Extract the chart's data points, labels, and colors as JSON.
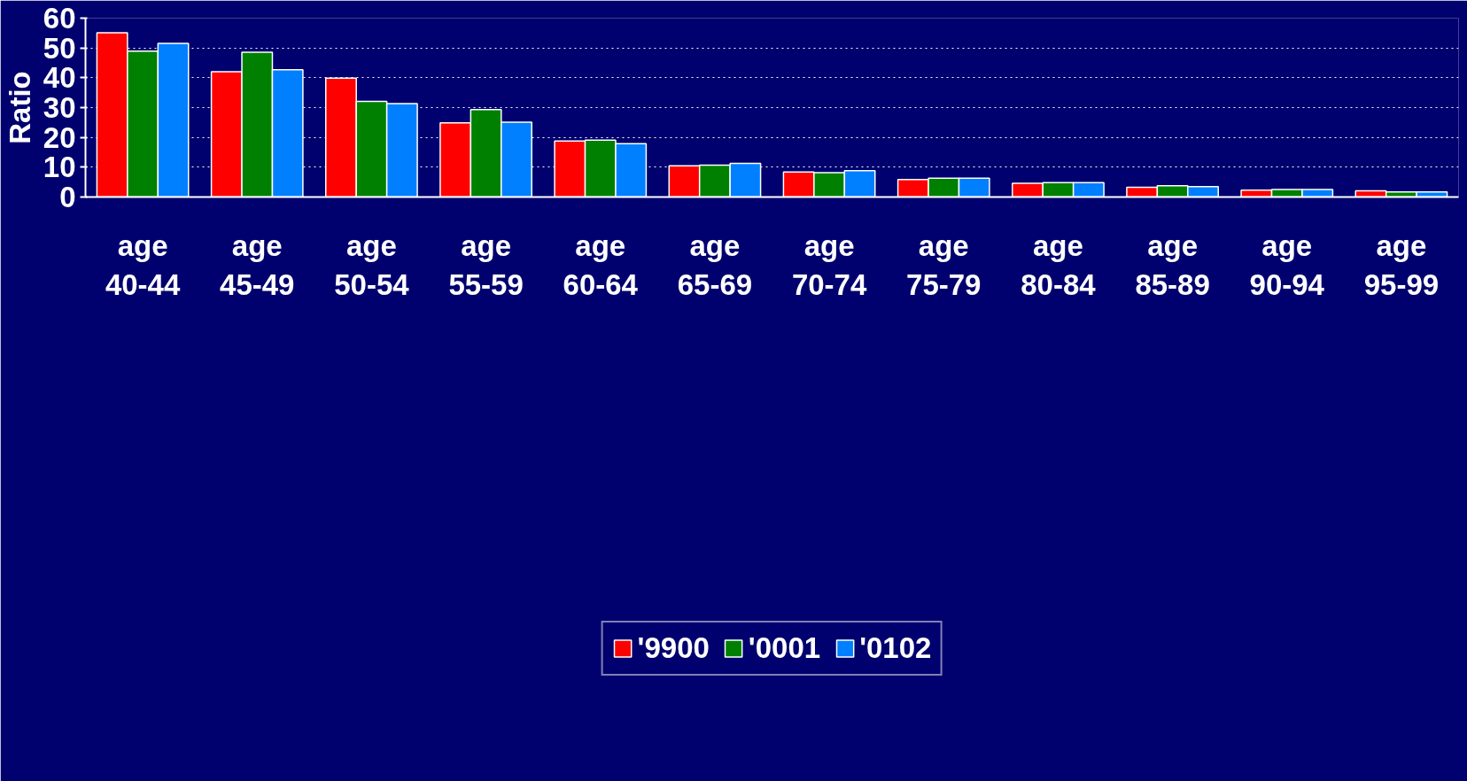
{
  "chart_data": {
    "type": "bar",
    "ylabel": "Ratio",
    "categories": [
      "age\n40-44",
      "age\n45-49",
      "age\n50-54",
      "age\n55-59",
      "age\n60-64",
      "age\n65-69",
      "age\n70-74",
      "age\n75-79",
      "age\n80-84",
      "age\n85-89",
      "age\n90-94",
      "age\n95-99"
    ],
    "series": [
      {
        "name": "'9900",
        "color": "#ff0000",
        "values": [
          55.1,
          42.0,
          39.9,
          24.9,
          18.8,
          10.5,
          8.4,
          5.9,
          4.6,
          3.3,
          2.3,
          2.1
        ]
      },
      {
        "name": "'0001",
        "color": "#008000",
        "values": [
          48.9,
          48.6,
          32.1,
          29.3,
          19.1,
          10.7,
          8.2,
          6.3,
          4.8,
          3.8,
          2.5,
          1.7
        ]
      },
      {
        "name": "'0102",
        "color": "#0080ff",
        "values": [
          51.5,
          42.7,
          31.3,
          25.1,
          17.9,
          11.3,
          8.8,
          6.3,
          4.8,
          3.5,
          2.5,
          1.7
        ]
      }
    ],
    "ylim": [
      0,
      60
    ],
    "yticks": [
      0,
      10,
      20,
      30,
      40,
      50,
      60
    ],
    "grid": "y",
    "legend": "bottom"
  }
}
